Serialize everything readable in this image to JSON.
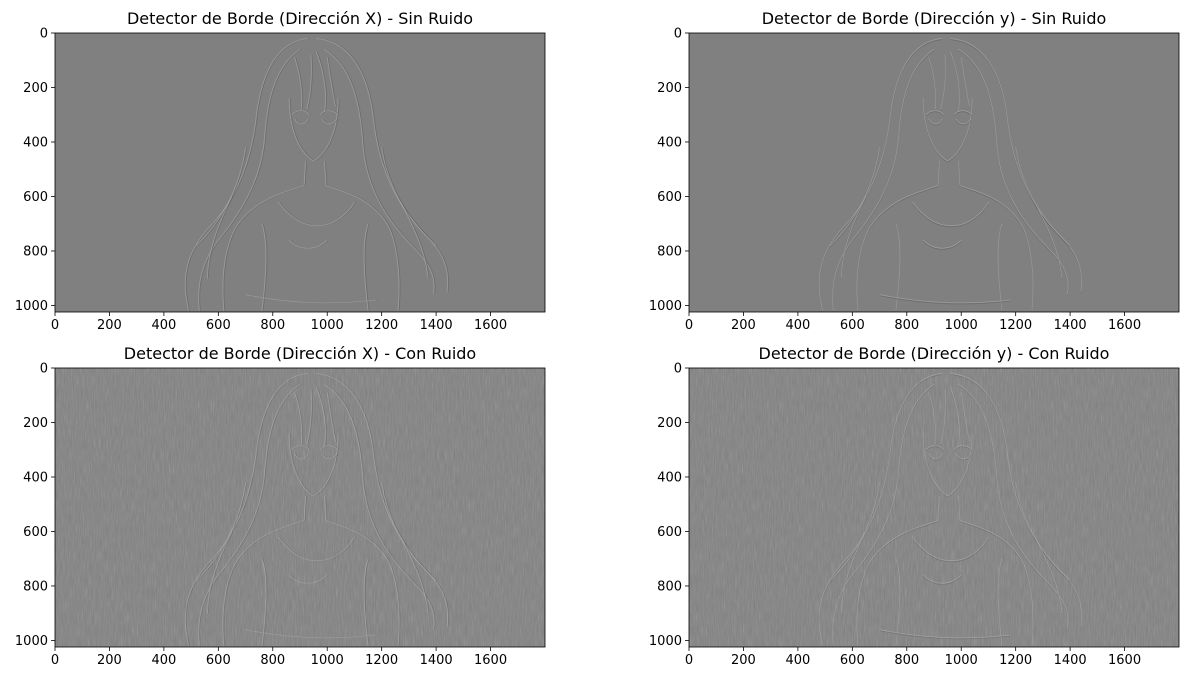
{
  "chart_data": [
    {
      "type": "heatmap",
      "title": "Detector de Borde (Dirección X) - Sin Ruido",
      "xlim": [
        0,
        1800
      ],
      "ylim": [
        1024,
        0
      ],
      "xticks": [
        0,
        200,
        400,
        600,
        800,
        1000,
        1200,
        1400,
        1600
      ],
      "yticks": [
        0,
        200,
        400,
        600,
        800,
        1000
      ],
      "colormap": "gray",
      "direction": "x",
      "noise": false
    },
    {
      "type": "heatmap",
      "title": "Detector de Borde (Dirección y) - Sin Ruido",
      "xlim": [
        0,
        1800
      ],
      "ylim": [
        1024,
        0
      ],
      "xticks": [
        0,
        200,
        400,
        600,
        800,
        1000,
        1200,
        1400,
        1600
      ],
      "yticks": [
        0,
        200,
        400,
        600,
        800,
        1000
      ],
      "colormap": "gray",
      "direction": "y",
      "noise": false
    },
    {
      "type": "heatmap",
      "title": "Detector de Borde (Dirección X) - Con Ruido",
      "xlim": [
        0,
        1800
      ],
      "ylim": [
        1024,
        0
      ],
      "xticks": [
        0,
        200,
        400,
        600,
        800,
        1000,
        1200,
        1400,
        1600
      ],
      "yticks": [
        0,
        200,
        400,
        600,
        800,
        1000
      ],
      "colormap": "gray",
      "direction": "x",
      "noise": true
    },
    {
      "type": "heatmap",
      "title": "Detector de Borde (Dirección y) - Con Ruido",
      "xlim": [
        0,
        1800
      ],
      "ylim": [
        1024,
        0
      ],
      "xticks": [
        0,
        200,
        400,
        600,
        800,
        1000,
        1200,
        1400,
        1600
      ],
      "yticks": [
        0,
        200,
        400,
        600,
        800,
        1000
      ],
      "colormap": "gray",
      "direction": "y",
      "noise": true
    }
  ],
  "colors": {
    "background": "#808080",
    "highlight": "#a8a8a8",
    "shadow": "#5c5c5c"
  }
}
